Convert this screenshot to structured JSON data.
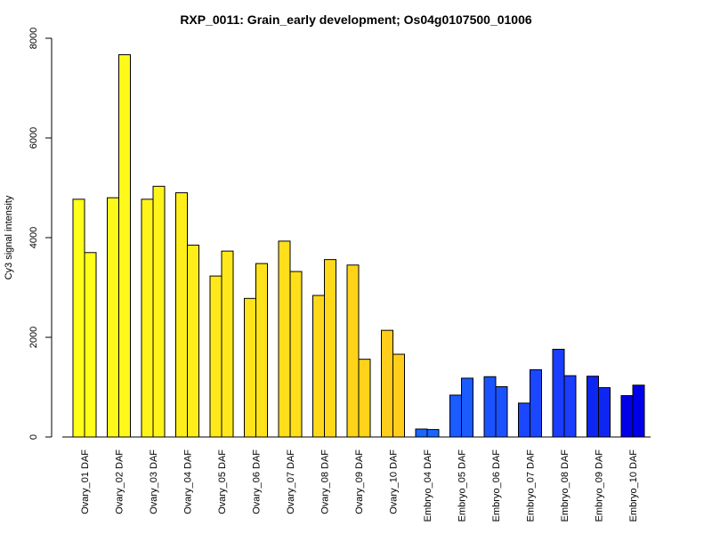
{
  "chart_data": {
    "type": "bar",
    "title": "RXP_0011: Grain_early development; Os04g0107500_01006",
    "xlabel": "",
    "ylabel": "Cy3 signal intensity",
    "ylim": [
      0,
      8000
    ],
    "yticks": [
      0,
      2000,
      4000,
      6000,
      8000
    ],
    "grid": false,
    "categories": [
      "Ovary_01 DAF",
      "Ovary_02 DAF",
      "Ovary_03 DAF",
      "Ovary_04 DAF",
      "Ovary_05 DAF",
      "Ovary_06 DAF",
      "Ovary_07 DAF",
      "Ovary_08 DAF",
      "Ovary_09 DAF",
      "Ovary_10 DAF",
      "Embryo_04 DAF",
      "Embryo_05 DAF",
      "Embryo_06 DAF",
      "Embryo_07 DAF",
      "Embryo_08 DAF",
      "Embryo_09 DAF",
      "Embryo_10 DAF"
    ],
    "series": [
      {
        "values": [
          4770,
          4800,
          4770,
          4900,
          3230,
          2780,
          3930,
          2840,
          3450,
          2140,
          160,
          840,
          1210,
          680,
          1760,
          1220,
          830
        ]
      },
      {
        "values": [
          3700,
          7670,
          5030,
          3850,
          3730,
          3480,
          3320,
          3560,
          1560,
          1660,
          150,
          1180,
          1010,
          1350,
          1230,
          990,
          1040
        ]
      }
    ],
    "colors": [
      "#FFFF1A",
      "#FFF91A",
      "#FFF41A",
      "#FFEE1A",
      "#FFE91A",
      "#FFE31A",
      "#FFDE1A",
      "#FFD81A",
      "#FFD31A",
      "#FFCD1A",
      "#1A66FF",
      "#1A5CFF",
      "#1A52FF",
      "#1A47FF",
      "#1A3DFF",
      "#0D26F2",
      "#0000E8"
    ]
  }
}
